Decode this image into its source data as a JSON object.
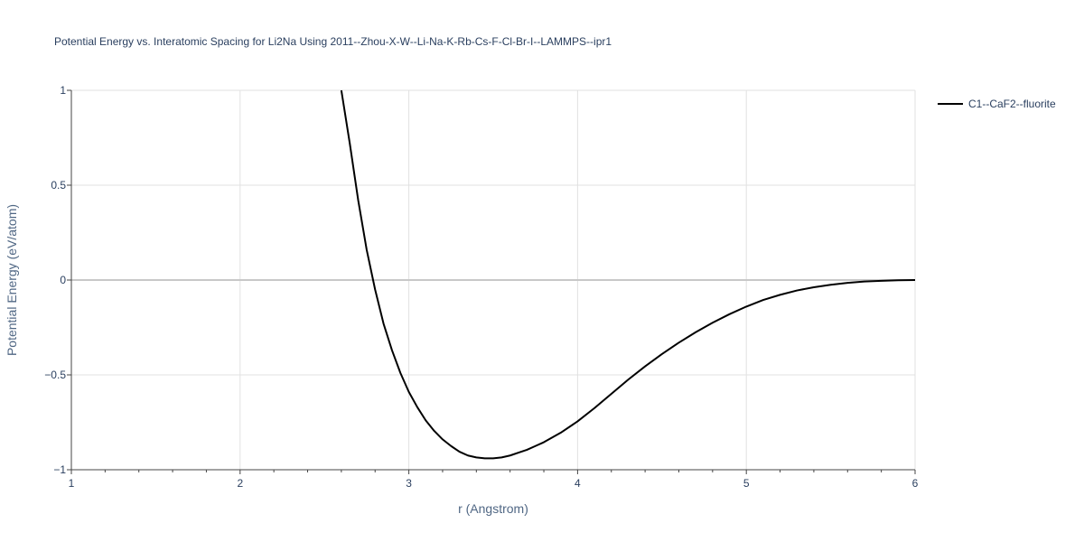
{
  "chart_data": {
    "type": "line",
    "title": "Potential Energy vs. Interatomic Spacing for Li2Na Using 2011--Zhou-X-W--Li-Na-K-Rb-Cs-F-Cl-Br-I--LAMMPS--ipr1",
    "xlabel": "r (Angstrom)",
    "ylabel": "Potential Energy (eV/atom)",
    "xlim": [
      1,
      6
    ],
    "ylim": [
      -1,
      1
    ],
    "xticks": [
      1,
      2,
      3,
      4,
      5,
      6
    ],
    "xtick_labels": [
      "1",
      "2",
      "3",
      "4",
      "5",
      "6"
    ],
    "yticks": [
      -1,
      -0.5,
      0,
      0.5,
      1
    ],
    "ytick_labels": [
      "−1",
      "−0.5",
      "0",
      "0.5",
      "1"
    ],
    "grid": true,
    "legend_position": "top-right",
    "line_color": "#000000",
    "series": [
      {
        "name": "C1--CaF2--fluorite",
        "x": [
          2.6,
          2.65,
          2.7,
          2.75,
          2.8,
          2.85,
          2.9,
          2.95,
          3.0,
          3.05,
          3.1,
          3.15,
          3.2,
          3.25,
          3.3,
          3.35,
          3.4,
          3.45,
          3.5,
          3.55,
          3.6,
          3.65,
          3.7,
          3.75,
          3.8,
          3.85,
          3.9,
          4.0,
          4.1,
          4.2,
          4.3,
          4.4,
          4.5,
          4.6,
          4.7,
          4.8,
          4.9,
          5.0,
          5.1,
          5.2,
          5.3,
          5.4,
          5.5,
          5.6,
          5.7,
          5.8,
          5.9,
          6.0
        ],
        "y": [
          1.0,
          0.72,
          0.42,
          0.16,
          -0.05,
          -0.23,
          -0.37,
          -0.49,
          -0.59,
          -0.67,
          -0.74,
          -0.795,
          -0.84,
          -0.875,
          -0.905,
          -0.925,
          -0.935,
          -0.94,
          -0.94,
          -0.935,
          -0.925,
          -0.91,
          -0.895,
          -0.875,
          -0.855,
          -0.83,
          -0.805,
          -0.745,
          -0.675,
          -0.6,
          -0.525,
          -0.455,
          -0.39,
          -0.33,
          -0.275,
          -0.225,
          -0.18,
          -0.14,
          -0.105,
          -0.078,
          -0.055,
          -0.038,
          -0.025,
          -0.015,
          -0.008,
          -0.004,
          -0.001,
          0.0
        ]
      }
    ]
  }
}
